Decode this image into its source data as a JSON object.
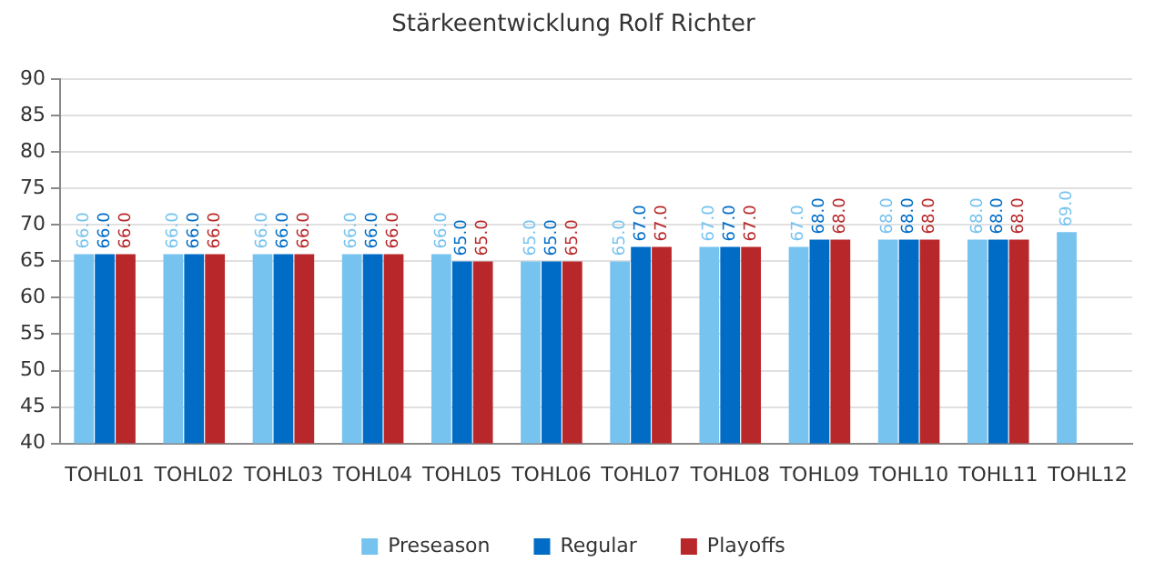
{
  "chart_data": {
    "type": "bar",
    "title": "Stärkeentwicklung Rolf Richter",
    "categories": [
      "TOHL01",
      "TOHL02",
      "TOHL03",
      "TOHL04",
      "TOHL05",
      "TOHL06",
      "TOHL07",
      "TOHL08",
      "TOHL09",
      "TOHL10",
      "TOHL11",
      "TOHL12"
    ],
    "series": [
      {
        "name": "Preseason",
        "color": "#77c3ef",
        "values": [
          66,
          66,
          66,
          66,
          66,
          65,
          65,
          67,
          67,
          68,
          68,
          69
        ],
        "value_labels": [
          "66.0",
          "66.0",
          "66.0",
          "66.0",
          "66.0",
          "65.0",
          "65.0",
          "67.0",
          "67.0",
          "68.0",
          "68.0",
          "69.0"
        ]
      },
      {
        "name": "Regular",
        "color": "#006cc6",
        "values": [
          66,
          66,
          66,
          66,
          65,
          65,
          67,
          67,
          68,
          68,
          68,
          null
        ],
        "value_labels": [
          "66.0",
          "66.0",
          "66.0",
          "66.0",
          "65.0",
          "65.0",
          "67.0",
          "67.0",
          "68.0",
          "68.0",
          "68.0",
          null
        ]
      },
      {
        "name": "Playoffs",
        "color": "#b8282a",
        "values": [
          66,
          66,
          66,
          66,
          65,
          65,
          67,
          67,
          68,
          68,
          68,
          null
        ],
        "value_labels": [
          "66.0",
          "66.0",
          "66.0",
          "66.0",
          "65.0",
          "65.0",
          "67.0",
          "67.0",
          "68.0",
          "68.0",
          "68.0",
          null
        ]
      }
    ],
    "ylim": [
      40,
      90
    ],
    "yticks": [
      40,
      45,
      50,
      55,
      60,
      65,
      70,
      75,
      80,
      85,
      90
    ],
    "grid": "y",
    "legend": "bottom"
  }
}
